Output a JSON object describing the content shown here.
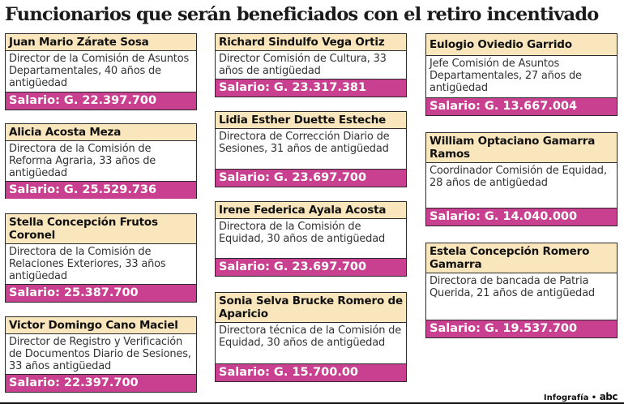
{
  "title": "Funcionarios que serán beneficiados con el retiro incentivado",
  "colors": {
    "name_bg": "#f9e6bd",
    "salary_bg": "#c8408f"
  },
  "cards": [
    {
      "name": "Juan Mario Zárate Sosa",
      "desc": "Director de la Comisión de Asuntos Departamentales, 40 años de antigüedad",
      "salary": "Salario: G. 22.397.700"
    },
    {
      "name": "Alicia Acosta Meza",
      "desc": "Directora de la Comisión de Reforma Agraria, 33 años de antigüedad",
      "salary": "Salario: G. 25.529.736"
    },
    {
      "name": "Stella Concepción Frutos Coronel",
      "desc": "Directora de la Comisión de Relaciones Exteriores, 33 años antigüedad",
      "salary": "Salario: 25.387.700"
    },
    {
      "name": "Victor Domingo Cano Maciel",
      "desc": "Director de Registro y Verificación de Documentos Diario de Sesiones, 33 años antigüedad",
      "salary": "Salario: 22.397.700"
    },
    {
      "name": "Richard Sindulfo Vega Ortiz",
      "desc": "Director Comisión de Cultura, 33 años de antigüedad",
      "salary": "Salario: G. 23.317.381"
    },
    {
      "name": "Lidia Esther Duette Esteche",
      "desc": "Directora de Corrección Diario de Sesiones, 31 años de antigüedad",
      "salary": "Salario: G. 23.697.700"
    },
    {
      "name": "Irene Federica Ayala Acosta",
      "desc": "Directora de la Comisión de Equidad, 30 años de antigüedad",
      "salary": "Salario: G. 23.697.700"
    },
    {
      "name": "Sonia Selva Brucke Romero de Aparicio",
      "desc": "Directora técnica de la Comisión de Equidad, 30 años de antigüedad",
      "salary": "Salario: G. 15.700.00"
    },
    {
      "name": "Eulogio Oviedio Garrido",
      "desc": "Jefe Comisión de Asuntos Departamentales, 27 años de antigüedad",
      "salary": "Salario: G. 13.667.004"
    },
    {
      "name": "William Optaciano Gamarra Ramos",
      "desc": "Coordinador Comisión de Equidad, 28 años de antigüedad",
      "salary": "Salario: G. 14.040.000"
    },
    {
      "name": "Estela Concepción Romero Gamarra",
      "desc": "Directora de bancada de Patria Querida, 21 años de antigüedad",
      "salary": "Salario: G. 19.537.700"
    }
  ],
  "footer": {
    "label": "Infografía •",
    "logo": "abc"
  }
}
